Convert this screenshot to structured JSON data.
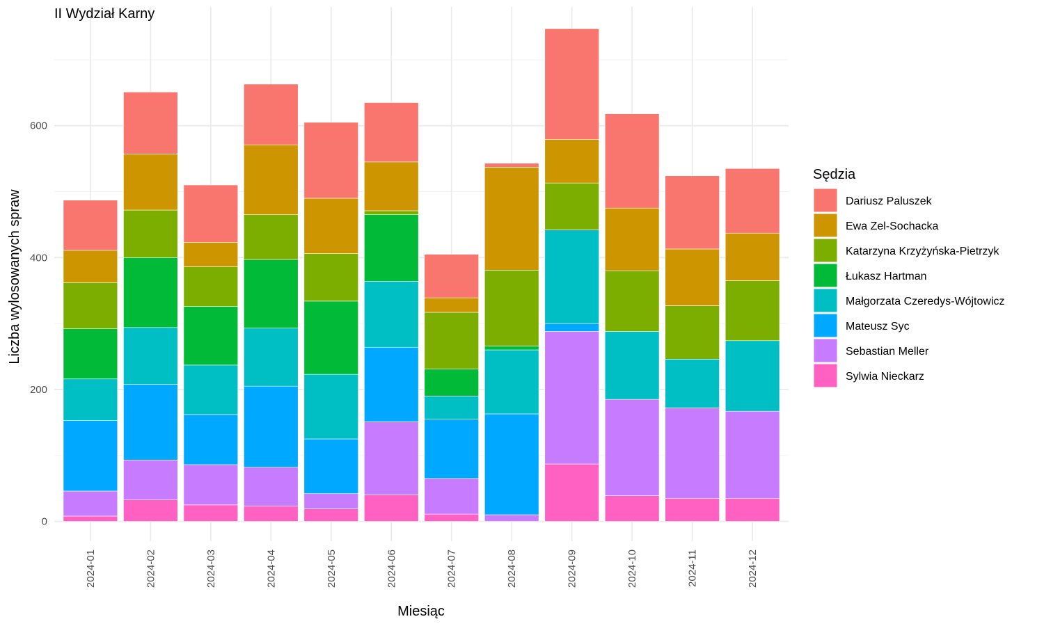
{
  "chart_data": {
    "type": "bar",
    "stacked": true,
    "title": "II Wydział Karny",
    "xlabel": "Miesiąc",
    "ylabel": "Liczba wylosowanych spraw",
    "ylim": [
      -30,
      780
    ],
    "yticks": [
      0,
      200,
      400,
      600
    ],
    "grid": true,
    "legend_title": "Sędzia",
    "legend_position": "right",
    "categories": [
      "2024-01",
      "2024-02",
      "2024-03",
      "2024-04",
      "2024-05",
      "2024-06",
      "2024-07",
      "2024-08",
      "2024-09",
      "2024-10",
      "2024-11",
      "2024-12"
    ],
    "series": [
      {
        "name": "Sylwia Nieckarz",
        "color": "#FF61C3",
        "values": [
          8,
          33,
          25,
          23,
          19,
          40,
          11,
          0,
          87,
          39,
          35,
          35
        ]
      },
      {
        "name": "Sebastian Meller",
        "color": "#C77CFF",
        "values": [
          38,
          60,
          61,
          59,
          23,
          111,
          54,
          10,
          201,
          146,
          137,
          132
        ]
      },
      {
        "name": "Mateusz Syc",
        "color": "#00A9FF",
        "values": [
          107,
          115,
          76,
          123,
          83,
          113,
          90,
          153,
          12,
          0,
          0,
          0
        ]
      },
      {
        "name": "Małgorzata Czeredys-Wójtowicz",
        "color": "#00BFC4",
        "values": [
          63,
          86,
          75,
          88,
          98,
          100,
          35,
          97,
          142,
          103,
          74,
          107
        ]
      },
      {
        "name": "Łukasz Hartman",
        "color": "#00BA38",
        "values": [
          76,
          106,
          89,
          104,
          111,
          101,
          41,
          6,
          0,
          0,
          0,
          0
        ]
      },
      {
        "name": "Katarzyna Krzyżyńska-Pietrzyk",
        "color": "#7CAE00",
        "values": [
          70,
          72,
          60,
          68,
          72,
          6,
          86,
          115,
          71,
          92,
          81,
          91
        ]
      },
      {
        "name": "Ewa Zel-Sochacka",
        "color": "#CD9600",
        "values": [
          49,
          85,
          37,
          106,
          84,
          74,
          22,
          156,
          66,
          95,
          86,
          72
        ]
      },
      {
        "name": "Dariusz Paluszek",
        "color": "#F8766D",
        "values": [
          76,
          94,
          87,
          92,
          115,
          90,
          66,
          6,
          168,
          143,
          111,
          98
        ]
      }
    ],
    "legend_order": [
      "Dariusz Paluszek",
      "Ewa Zel-Sochacka",
      "Katarzyna Krzyżyńska-Pietrzyk",
      "Łukasz Hartman",
      "Małgorzata Czeredys-Wójtowicz",
      "Mateusz Syc",
      "Sebastian Meller",
      "Sylwia Nieckarz"
    ]
  }
}
